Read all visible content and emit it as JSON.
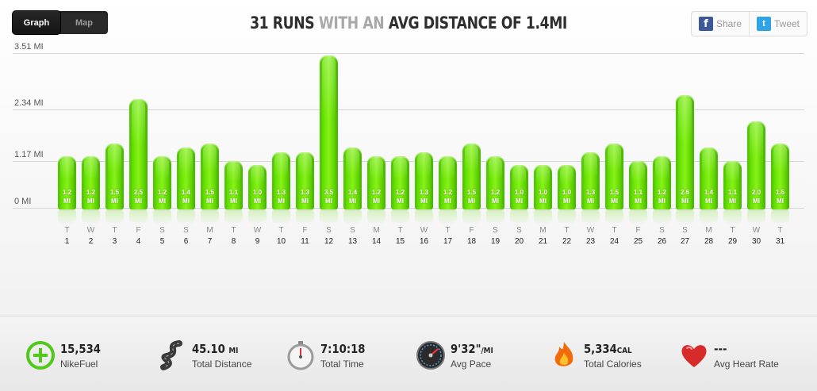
{
  "toggle": {
    "graph": "Graph",
    "map": "Map"
  },
  "headline": {
    "part1": "31 RUNS",
    "part2": "WITH AN",
    "part3": "AVG DISTANCE OF 1.4MI"
  },
  "social": {
    "share": "Share",
    "tweet": "Tweet",
    "facebook_glyph": "f",
    "twitter_glyph": "t"
  },
  "colors": {
    "bar_green": "#66e000",
    "facebook": "#3b5998",
    "twitter": "#2fa3e6"
  },
  "chart_data": {
    "type": "bar",
    "unit": "MI",
    "y_ticks": [
      "3.51 MI",
      "2.34 MI",
      "1.17 MI",
      "0 MI"
    ],
    "ylim": [
      0,
      3.51
    ],
    "days": [
      "T",
      "W",
      "T",
      "F",
      "S",
      "S",
      "M",
      "T",
      "W",
      "T",
      "F",
      "S",
      "S",
      "M",
      "T",
      "W",
      "T",
      "F",
      "S",
      "S",
      "M",
      "T",
      "W",
      "T",
      "F",
      "S",
      "S",
      "M",
      "T",
      "W",
      "T"
    ],
    "categories": [
      "1",
      "2",
      "3",
      "4",
      "5",
      "6",
      "7",
      "8",
      "9",
      "10",
      "11",
      "12",
      "13",
      "14",
      "15",
      "16",
      "17",
      "18",
      "19",
      "20",
      "21",
      "22",
      "23",
      "24",
      "25",
      "26",
      "27",
      "28",
      "29",
      "30",
      "31"
    ],
    "values": [
      1.2,
      1.2,
      1.5,
      2.5,
      1.2,
      1.4,
      1.5,
      1.1,
      1.0,
      1.3,
      1.3,
      3.5,
      1.4,
      1.2,
      1.2,
      1.3,
      1.2,
      1.5,
      1.2,
      1.0,
      1.0,
      1.0,
      1.3,
      1.5,
      1.1,
      1.2,
      2.6,
      1.4,
      1.1,
      2.0,
      1.5
    ]
  },
  "stats": [
    {
      "icon": "nikefuel-icon",
      "value": "15,534",
      "unit": "",
      "label": "NikeFuel"
    },
    {
      "icon": "road-icon",
      "value": "45.10",
      "unit": "MI",
      "label": "Total Distance"
    },
    {
      "icon": "stopwatch-icon",
      "value": "7:10:18",
      "unit": "",
      "label": "Total Time"
    },
    {
      "icon": "speedometer-icon",
      "value": "9'32\"",
      "unit": "/MI",
      "label": "Avg Pace"
    },
    {
      "icon": "flame-icon",
      "value": "5,334",
      "unit": "CAL",
      "label": "Total Calories"
    },
    {
      "icon": "heart-icon",
      "value": "---",
      "unit": "",
      "label": "Avg Heart Rate"
    }
  ]
}
